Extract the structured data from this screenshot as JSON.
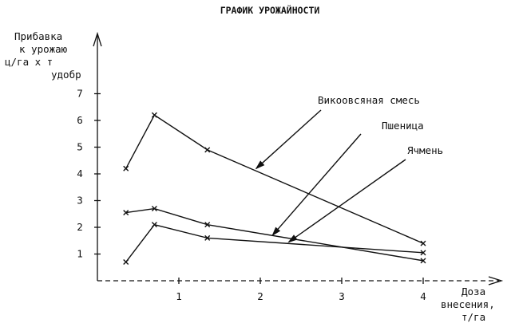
{
  "chart_data": {
    "type": "line",
    "title": "ГРАФИК УРОЖАЙНОСТИ",
    "ylabel": [
      "Прибавка",
      "к урожаю",
      "ц/га х т",
      "удобр"
    ],
    "xlabel": [
      "Доза",
      "внесения,",
      "т/га"
    ],
    "x_ticks": [
      "1",
      "2",
      "3",
      "4"
    ],
    "y_ticks": [
      "1",
      "2",
      "3",
      "4",
      "5",
      "6",
      "7"
    ],
    "xlim": [
      0,
      4.9
    ],
    "ylim": [
      0,
      8.1
    ],
    "series": [
      {
        "name": "Викоовсяная смесь",
        "points": [
          [
            0.35,
            4.2
          ],
          [
            0.7,
            6.2
          ],
          [
            1.35,
            4.9
          ],
          [
            4.0,
            1.4
          ]
        ],
        "callout_to": [
          1.95,
          4.2
        ]
      },
      {
        "name": "Пшеница",
        "points": [
          [
            0.35,
            2.55
          ],
          [
            0.7,
            2.7
          ],
          [
            1.35,
            2.1
          ],
          [
            4.0,
            0.75
          ]
        ],
        "callout_to": [
          2.15,
          1.7
        ]
      },
      {
        "name": "Ячмень",
        "points": [
          [
            0.35,
            0.7
          ],
          [
            0.7,
            2.1
          ],
          [
            1.35,
            1.6
          ],
          [
            4.0,
            1.05
          ]
        ],
        "callout_to": [
          2.35,
          1.45
        ]
      }
    ]
  }
}
